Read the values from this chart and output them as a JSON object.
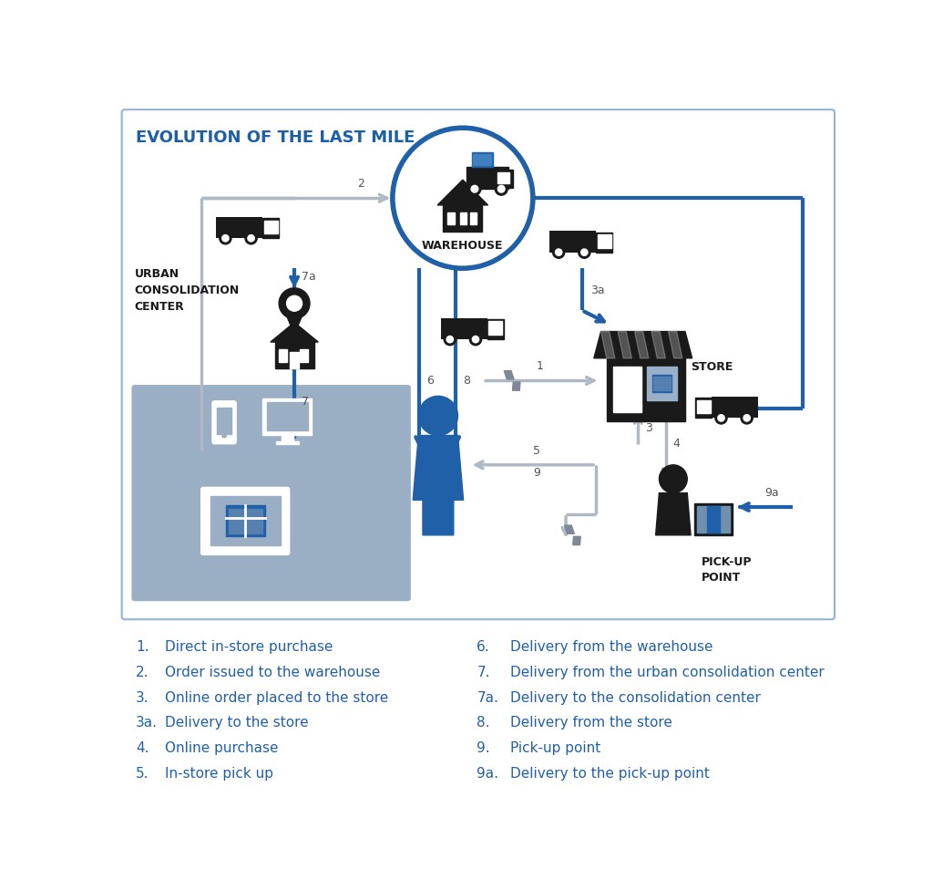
{
  "title": "EVOLUTION OF THE LAST MILE",
  "title_color": "#1b5fa8",
  "bg_color": "#ffffff",
  "border_color": "#92b4d4",
  "blue": "#2060a8",
  "blue_dark": "#1a4f8a",
  "gray_arrow": "#b0b8c4",
  "gray_bg": "#9aafc4",
  "gray_light": "#c0cdd8",
  "black_icon": "#1a1a1a",
  "legend_blue": "#2060a8",
  "legend_items_left": [
    [
      "1.",
      "Direct in-store purchase"
    ],
    [
      "2.",
      "Order issued to the warehouse"
    ],
    [
      "3.",
      "Online order placed to the store"
    ],
    [
      "3a.",
      "Delivery to the store"
    ],
    [
      "4.",
      "Online purchase"
    ],
    [
      "5.",
      "In-store pick up"
    ]
  ],
  "legend_items_right": [
    [
      "6.",
      "Delivery from the warehouse"
    ],
    [
      "7.",
      "Delivery from the urban consolidation center"
    ],
    [
      "7a.",
      "Delivery to the consolidation center"
    ],
    [
      "8.",
      "Delivery from the store"
    ],
    [
      "9.",
      "Pick-up point"
    ],
    [
      "9a.",
      "Delivery to the pick-up point"
    ]
  ]
}
